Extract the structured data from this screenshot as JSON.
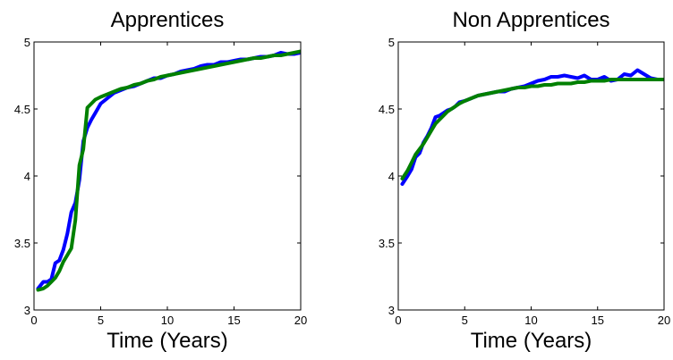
{
  "chart_data": [
    {
      "type": "line",
      "title": "Apprentices",
      "xlabel": "Time (Years)",
      "ylabel": "",
      "xlim": [
        0,
        20
      ],
      "ylim": [
        3,
        5
      ],
      "xticks": [
        "0",
        "5",
        "10",
        "15",
        "20"
      ],
      "yticks": [
        "3",
        "3.5",
        "4",
        "4.5",
        "5"
      ],
      "grid": false,
      "series": [
        {
          "color": "#0000ff",
          "x": [
            0.3,
            0.7,
            1.0,
            1.3,
            1.6,
            1.9,
            2.2,
            2.5,
            2.8,
            3.1,
            3.4,
            3.7,
            4.0,
            4.3,
            4.6,
            5.0,
            5.5,
            6.0,
            6.5,
            7.0,
            7.5,
            8.0,
            8.5,
            9.0,
            9.5,
            10,
            10.5,
            11,
            11.5,
            12,
            12.5,
            13,
            13.5,
            14,
            14.5,
            15,
            15.5,
            16,
            16.5,
            17,
            17.5,
            18,
            18.5,
            19,
            19.5,
            20
          ],
          "y": [
            3.16,
            3.21,
            3.21,
            3.23,
            3.35,
            3.37,
            3.45,
            3.57,
            3.73,
            3.8,
            3.97,
            4.26,
            4.36,
            4.42,
            4.47,
            4.54,
            4.58,
            4.62,
            4.64,
            4.66,
            4.67,
            4.69,
            4.71,
            4.73,
            4.73,
            4.75,
            4.76,
            4.78,
            4.79,
            4.8,
            4.82,
            4.83,
            4.83,
            4.85,
            4.85,
            4.86,
            4.87,
            4.87,
            4.88,
            4.89,
            4.89,
            4.9,
            4.92,
            4.91,
            4.91,
            4.92
          ]
        },
        {
          "color": "#008000",
          "x": [
            0.3,
            0.7,
            1.0,
            1.3,
            1.6,
            1.9,
            2.2,
            2.5,
            2.8,
            3.1,
            3.4,
            3.7,
            4.0,
            4.3,
            4.6,
            5.0,
            5.5,
            6.0,
            6.5,
            7.0,
            7.5,
            8.0,
            8.5,
            9.0,
            9.5,
            10,
            10.5,
            11,
            11.5,
            12,
            12.5,
            13,
            13.5,
            14,
            14.5,
            15,
            15.5,
            16,
            16.5,
            17,
            17.5,
            18,
            18.5,
            19,
            19.5,
            20
          ],
          "y": [
            3.15,
            3.16,
            3.18,
            3.21,
            3.24,
            3.29,
            3.36,
            3.41,
            3.46,
            3.67,
            4.08,
            4.2,
            4.51,
            4.54,
            4.57,
            4.59,
            4.61,
            4.63,
            4.65,
            4.66,
            4.68,
            4.69,
            4.71,
            4.72,
            4.74,
            4.75,
            4.76,
            4.77,
            4.78,
            4.79,
            4.8,
            4.81,
            4.82,
            4.83,
            4.84,
            4.85,
            4.86,
            4.87,
            4.88,
            4.88,
            4.89,
            4.9,
            4.9,
            4.91,
            4.92,
            4.93
          ]
        }
      ]
    },
    {
      "type": "line",
      "title": "Non Apprentices",
      "xlabel": "Time (Years)",
      "ylabel": "",
      "xlim": [
        0,
        20
      ],
      "ylim": [
        3,
        5
      ],
      "xticks": [
        "0",
        "5",
        "10",
        "15",
        "20"
      ],
      "yticks": [
        "3",
        "3.5",
        "4",
        "4.5",
        "5"
      ],
      "grid": false,
      "series": [
        {
          "color": "#0000ff",
          "x": [
            0.3,
            0.7,
            1.0,
            1.3,
            1.6,
            1.9,
            2.2,
            2.5,
            2.8,
            3.1,
            3.4,
            3.7,
            4.0,
            4.3,
            4.6,
            5.0,
            5.5,
            6.0,
            6.5,
            7.0,
            7.5,
            8.0,
            8.5,
            9.0,
            9.5,
            10,
            10.5,
            11,
            11.5,
            12,
            12.5,
            13,
            13.5,
            14,
            14.5,
            15,
            15.5,
            16,
            16.5,
            17,
            17.5,
            18,
            18.5,
            19,
            19.5,
            20
          ],
          "y": [
            3.94,
            4.0,
            4.05,
            4.14,
            4.17,
            4.25,
            4.3,
            4.36,
            4.44,
            4.45,
            4.47,
            4.49,
            4.5,
            4.52,
            4.55,
            4.56,
            4.58,
            4.6,
            4.61,
            4.62,
            4.63,
            4.63,
            4.65,
            4.66,
            4.67,
            4.69,
            4.71,
            4.72,
            4.74,
            4.74,
            4.75,
            4.74,
            4.73,
            4.75,
            4.72,
            4.72,
            4.74,
            4.71,
            4.72,
            4.76,
            4.75,
            4.79,
            4.76,
            4.73,
            4.72,
            4.72
          ]
        },
        {
          "color": "#008000",
          "x": [
            0.3,
            0.7,
            1.0,
            1.3,
            1.6,
            1.9,
            2.2,
            2.5,
            2.8,
            3.1,
            3.4,
            3.7,
            4.0,
            4.3,
            4.6,
            5.0,
            5.5,
            6.0,
            6.5,
            7.0,
            7.5,
            8.0,
            8.5,
            9.0,
            9.5,
            10,
            10.5,
            11,
            11.5,
            12,
            12.5,
            13,
            13.5,
            14,
            14.5,
            15,
            15.5,
            16,
            16.5,
            17,
            17.5,
            18,
            18.5,
            19,
            19.5,
            20
          ],
          "y": [
            3.98,
            4.04,
            4.1,
            4.16,
            4.2,
            4.24,
            4.29,
            4.34,
            4.39,
            4.42,
            4.45,
            4.48,
            4.5,
            4.52,
            4.54,
            4.56,
            4.58,
            4.6,
            4.61,
            4.62,
            4.63,
            4.64,
            4.65,
            4.66,
            4.66,
            4.67,
            4.67,
            4.68,
            4.68,
            4.69,
            4.69,
            4.69,
            4.7,
            4.7,
            4.71,
            4.71,
            4.71,
            4.72,
            4.72,
            4.72,
            4.72,
            4.72,
            4.72,
            4.72,
            4.72,
            4.72
          ]
        }
      ]
    }
  ]
}
